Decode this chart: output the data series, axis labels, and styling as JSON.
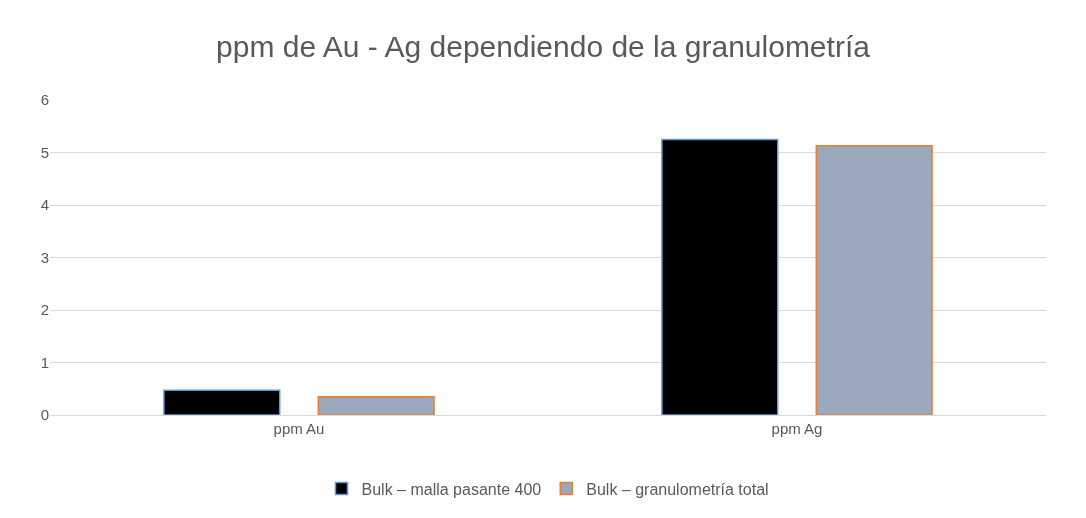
{
  "chart_data": {
    "type": "bar",
    "title": "ppm de Au - Ag dependiendo de la granulometría",
    "categories": [
      "ppm Au",
      "ppm Ag"
    ],
    "series": [
      {
        "name": "Bulk – malla pasante 400",
        "color": "#000000",
        "values": [
          0.47,
          5.25
        ]
      },
      {
        "name": "Bulk – granulometría total",
        "color": "#9aa8bc",
        "values": [
          0.35,
          5.13
        ]
      }
    ],
    "ylim": [
      0,
      6
    ],
    "yticks": [
      0,
      1,
      2,
      3,
      4,
      5,
      6
    ],
    "grid": "y",
    "legend": "bottom"
  }
}
